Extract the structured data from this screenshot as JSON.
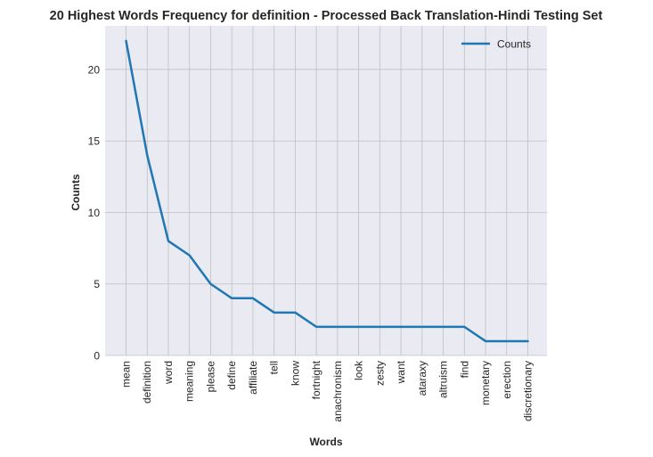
{
  "chart_data": {
    "type": "line",
    "title": "20 Highest Words Frequency for definition - Processed Back Translation-Hindi Testing Set",
    "xlabel": "Words",
    "ylabel": "Counts",
    "categories": [
      "mean",
      "definition",
      "word",
      "meaning",
      "please",
      "define",
      "affiliate",
      "tell",
      "know",
      "fortnight",
      "anachronism",
      "look",
      "zesty",
      "want",
      "ataraxy",
      "altruism",
      "find",
      "monetary",
      "erection",
      "discretionary"
    ],
    "series": [
      {
        "name": "Counts",
        "values": [
          22,
          14,
          8,
          7,
          5,
          4,
          4,
          3,
          3,
          2,
          2,
          2,
          2,
          2,
          2,
          2,
          2,
          1,
          1,
          1
        ],
        "color": "#1f77b4"
      }
    ],
    "ylim": [
      0,
      23.05
    ],
    "yticks": [
      0,
      5,
      10,
      15,
      20
    ],
    "grid": true,
    "legend_position": "top-right",
    "background": "#eaeaf2",
    "grid_color": "#c0c0c0"
  }
}
